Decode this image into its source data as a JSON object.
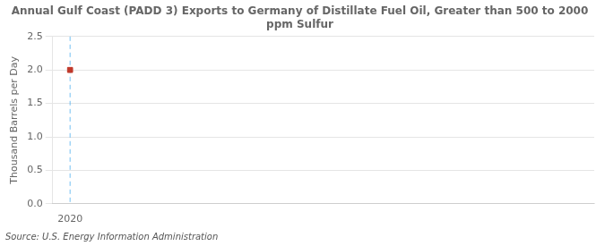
{
  "chart_data": {
    "type": "scatter",
    "title": "Annual Gulf Coast (PADD 3) Exports to Germany of Distillate Fuel Oil, Greater than 500 to 2000\nppm Sulfur",
    "ylabel": "Thousand Barrels per Day",
    "source": "Source: U.S. Energy Information Administration",
    "x": [
      2020
    ],
    "values": [
      2.0
    ],
    "color": "#c0392b",
    "marker": "square",
    "xlim": [
      2019.7,
      2029.0
    ],
    "xticks": [
      2020
    ],
    "ylim": [
      0.0,
      2.5
    ],
    "yticks": [
      {
        "value": 0.0,
        "label": "0.0"
      },
      0.5,
      {
        "value": 1.0,
        "label": "1.0"
      },
      1.5,
      {
        "value": 2.0,
        "label": "2.0"
      },
      2.5
    ],
    "vline_x": 2020,
    "grid": true
  }
}
